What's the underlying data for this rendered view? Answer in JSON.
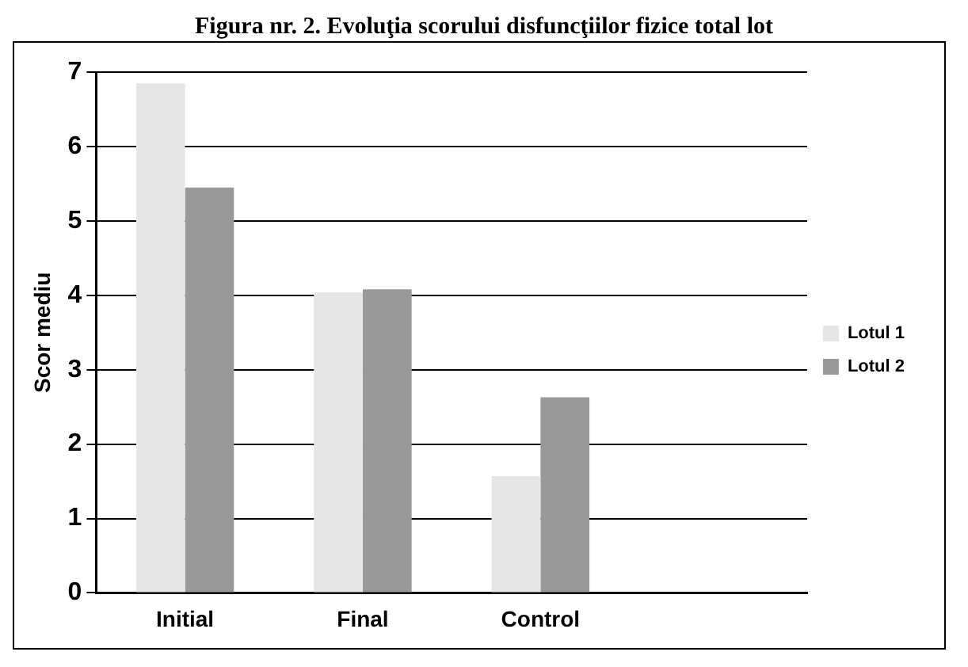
{
  "chart_data": {
    "type": "bar",
    "title": "Figura nr. 2. Evoluţia scorului disfuncţiilor fizice total lot",
    "ylabel": "Scor mediu",
    "categories": [
      "Initial",
      "Final",
      "Control",
      null
    ],
    "series": [
      {
        "name": "Lotul 1",
        "color": "#e6e6e6",
        "values": [
          6.85,
          4.04,
          1.57,
          null
        ]
      },
      {
        "name": "Lotul 2",
        "color": "#999999",
        "values": [
          5.45,
          4.08,
          2.63,
          null
        ]
      }
    ],
    "ylim": [
      0,
      7
    ],
    "yticks": [
      0,
      1,
      2,
      3,
      4,
      5,
      6,
      7
    ],
    "grid": "y",
    "legend": "right"
  }
}
